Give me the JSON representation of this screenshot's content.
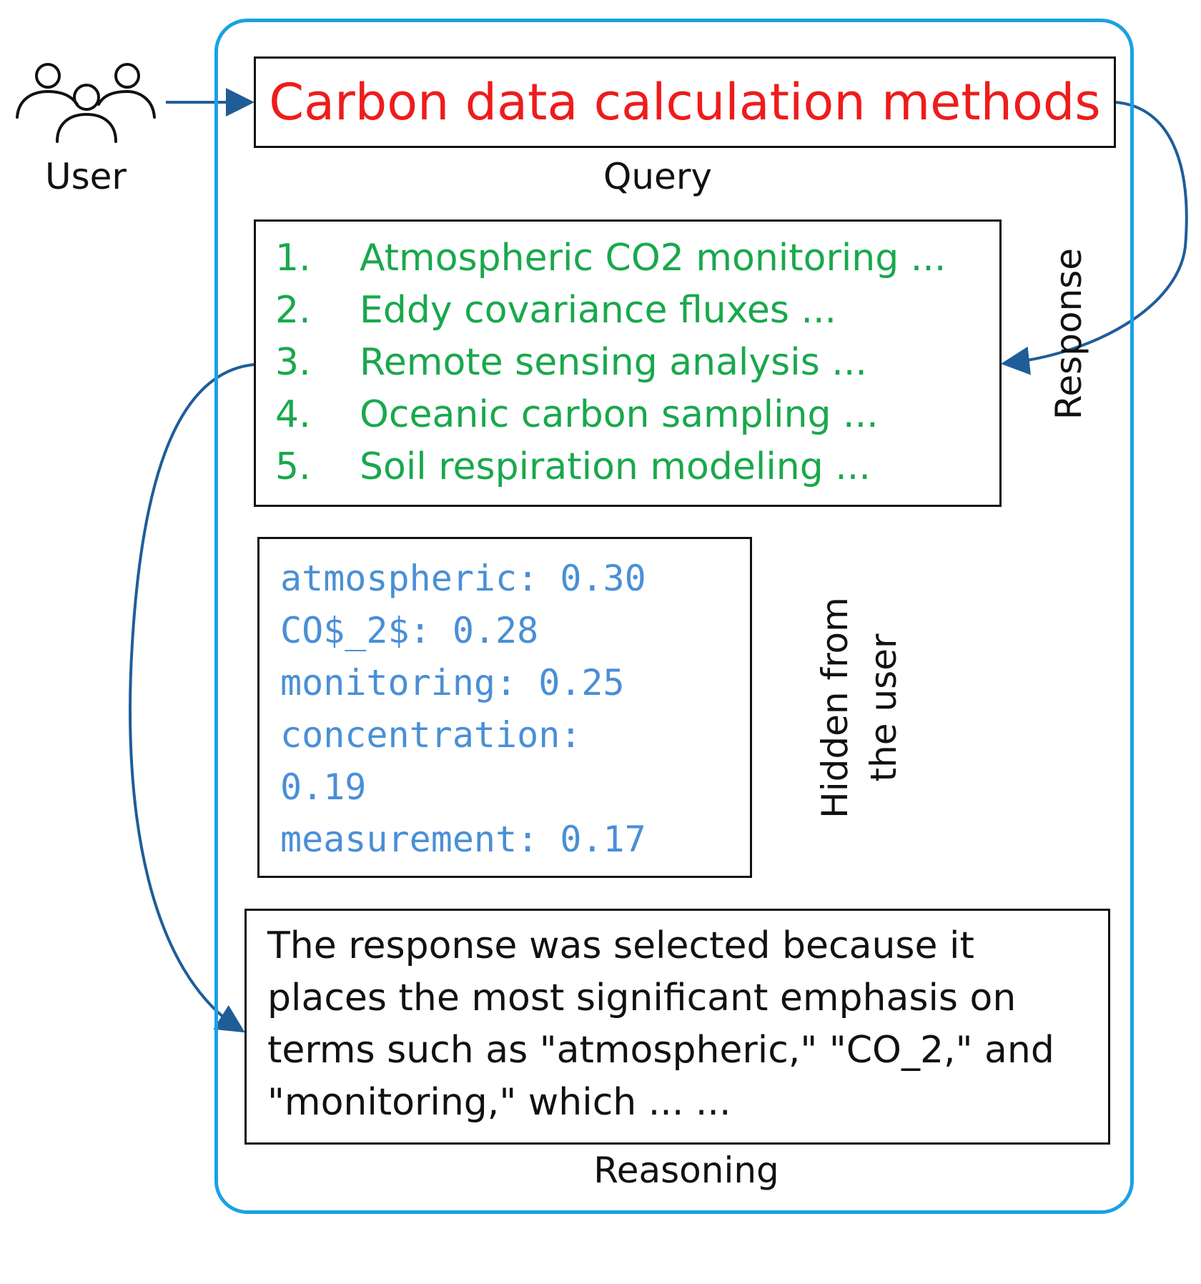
{
  "user": {
    "label": "User",
    "icon": "users-group-icon"
  },
  "query": {
    "text": "Carbon data calculation methods",
    "caption": "Query",
    "text_color": "#ee1c1c"
  },
  "response": {
    "label": "Response",
    "text_color": "#19a84c",
    "items": [
      {
        "num": "1.",
        "text": "Atmospheric CO2 monitoring ..."
      },
      {
        "num": "2.",
        "text": "Eddy covariance fluxes ..."
      },
      {
        "num": "3.",
        "text": "Remote sensing analysis ..."
      },
      {
        "num": "4.",
        "text": "Oceanic carbon sampling ..."
      },
      {
        "num": "5.",
        "text": "Soil respiration modeling ..."
      }
    ]
  },
  "scores": {
    "text_color": "#4a8fd6",
    "lines": [
      "atmospheric: 0.30",
      "CO$_2$: 0.28",
      "monitoring: 0.25",
      "concentration:",
      "0.19",
      "measurement: 0.17"
    ],
    "hidden_label_line1": "Hidden from",
    "hidden_label_line2": "the user"
  },
  "reasoning": {
    "text": "The response was selected because it places the most significant emphasis on terms such as \"atmospheric,\" \"CO_2,\" and \"monitoring,\" which ... ...",
    "caption": "Reasoning"
  },
  "colors": {
    "panel_border": "#1ba1e2",
    "arrow": "#1f5d99",
    "box_border": "#111111"
  }
}
